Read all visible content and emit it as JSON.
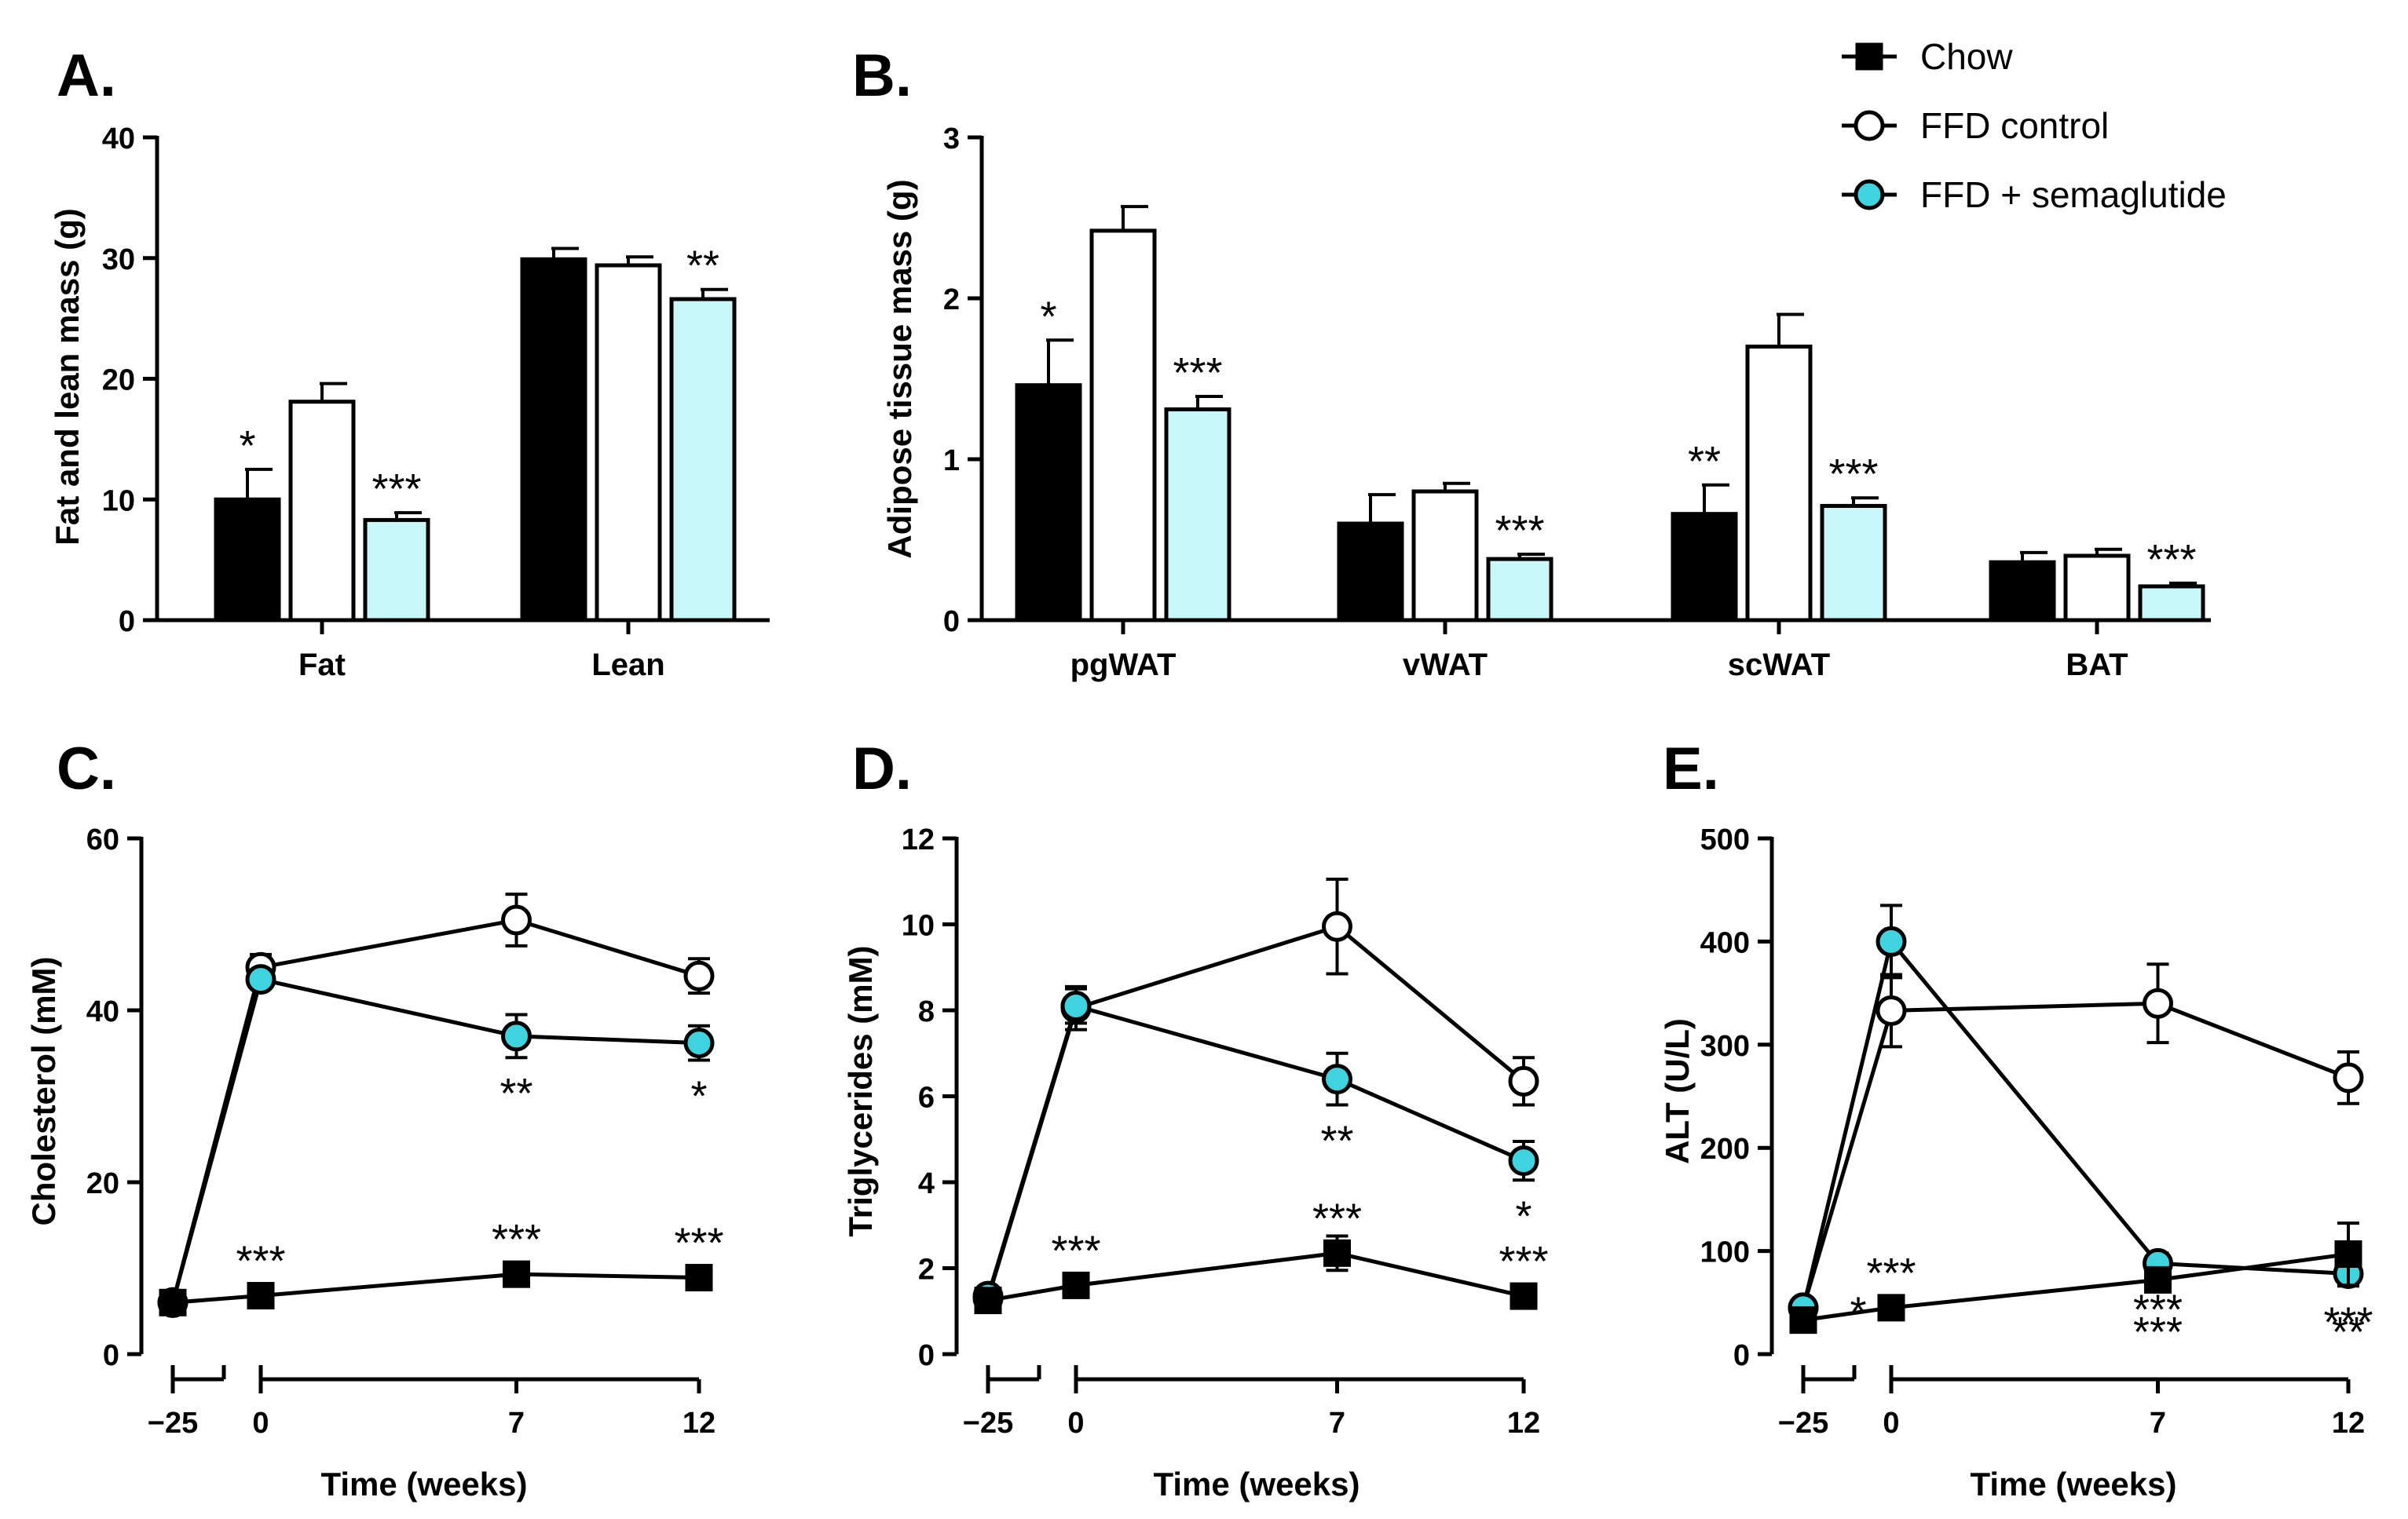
{
  "legend": [
    {
      "name": "Chow",
      "marker": "square",
      "fill": "#000000"
    },
    {
      "name": "FFD control",
      "marker": "circle",
      "fill": "#ffffff"
    },
    {
      "name": "FFD + semaglutide",
      "marker": "circle",
      "fill": "#3fd3df"
    }
  ],
  "colors": {
    "chow": "#000000",
    "control": "#ffffff",
    "sema_bar": "#c8f7f9",
    "sema_point": "#3fd3df"
  },
  "chart_data": [
    {
      "panel": "A.",
      "type": "bar",
      "ylabel": "Fat and lean mass (g)",
      "ylim": [
        0,
        40
      ],
      "yticks": [
        0,
        10,
        20,
        30,
        40
      ],
      "categories": [
        "Fat",
        "Lean"
      ],
      "series": [
        {
          "name": "Chow",
          "values": [
            10.0,
            29.9
          ],
          "errors": [
            2.5,
            0.9
          ],
          "sig": [
            "*",
            ""
          ]
        },
        {
          "name": "FFD control",
          "values": [
            18.1,
            29.4
          ],
          "errors": [
            1.5,
            0.7
          ],
          "sig": [
            "",
            ""
          ]
        },
        {
          "name": "FFD + semaglutide",
          "values": [
            8.3,
            26.6
          ],
          "errors": [
            0.6,
            0.8
          ],
          "sig": [
            "***",
            "**"
          ]
        }
      ]
    },
    {
      "panel": "B.",
      "type": "bar",
      "ylabel": "Adipose tissue mass (g)",
      "ylim": [
        0,
        3
      ],
      "yticks": [
        0,
        1,
        2,
        3
      ],
      "categories": [
        "pgWAT",
        "vWAT",
        "scWAT",
        "BAT"
      ],
      "series": [
        {
          "name": "Chow",
          "values": [
            1.46,
            0.6,
            0.66,
            0.36
          ],
          "errors": [
            0.28,
            0.18,
            0.18,
            0.06
          ],
          "sig": [
            "*",
            "",
            "**",
            ""
          ]
        },
        {
          "name": "FFD control",
          "values": [
            2.42,
            0.8,
            1.7,
            0.4
          ],
          "errors": [
            0.15,
            0.05,
            0.2,
            0.04
          ],
          "sig": [
            "",
            "",
            "",
            ""
          ]
        },
        {
          "name": "FFD + semaglutide",
          "values": [
            1.31,
            0.38,
            0.71,
            0.21
          ],
          "errors": [
            0.08,
            0.03,
            0.05,
            0.02
          ],
          "sig": [
            "***",
            "***",
            "***",
            "***"
          ]
        }
      ]
    },
    {
      "panel": "C.",
      "type": "line",
      "ylabel": "Cholesterol (mM)",
      "xlabel": "Time (weeks)",
      "ylim": [
        0,
        60
      ],
      "yticks": [
        0,
        20,
        40,
        60
      ],
      "xticks": [
        "-25",
        "0",
        "7",
        "12"
      ],
      "series": [
        {
          "name": "Chow",
          "points": [
            [
              -25,
              6.0,
              0
            ],
            [
              0,
              6.8,
              0
            ],
            [
              7,
              9.3,
              1.3
            ],
            [
              12,
              8.9,
              0.8
            ]
          ],
          "sig": [
            "",
            "***",
            "***",
            "***"
          ]
        },
        {
          "name": "FFD control",
          "points": [
            [
              -25,
              6.0,
              0
            ],
            [
              0,
              45.0,
              1.5
            ],
            [
              7,
              50.5,
              3.0
            ],
            [
              12,
              44.0,
              2.0
            ]
          ],
          "sig": [
            "",
            "",
            "",
            ""
          ]
        },
        {
          "name": "FFD + semaglutide",
          "points": [
            [
              -25,
              6.0,
              0
            ],
            [
              0,
              43.6,
              1.0
            ],
            [
              7,
              37.0,
              2.5
            ],
            [
              12,
              36.2,
              2.0
            ]
          ],
          "sig": [
            "",
            "",
            "**",
            "*"
          ]
        }
      ]
    },
    {
      "panel": "D.",
      "type": "line",
      "ylabel": "Triglycerides (mM)",
      "xlabel": "Time (weeks)",
      "ylim": [
        0,
        12
      ],
      "yticks": [
        0,
        2,
        4,
        6,
        8,
        10,
        12
      ],
      "xticks": [
        "-25",
        "0",
        "7",
        "12"
      ],
      "series": [
        {
          "name": "Chow",
          "points": [
            [
              -25,
              1.25,
              0.1
            ],
            [
              0,
              1.6,
              0.1
            ],
            [
              7,
              2.35,
              0.4
            ],
            [
              12,
              1.35,
              0.15
            ]
          ],
          "sig": [
            "",
            "***",
            "***",
            "***"
          ]
        },
        {
          "name": "FFD control",
          "points": [
            [
              -25,
              1.3,
              0
            ],
            [
              0,
              8.05,
              0.5
            ],
            [
              7,
              9.95,
              1.1
            ],
            [
              12,
              6.35,
              0.55
            ]
          ],
          "sig": [
            "",
            "",
            "",
            ""
          ]
        },
        {
          "name": "FFD + semaglutide",
          "points": [
            [
              -25,
              1.35,
              0
            ],
            [
              0,
              8.1,
              0.4
            ],
            [
              7,
              6.4,
              0.6
            ],
            [
              12,
              4.5,
              0.45
            ]
          ],
          "sig": [
            "",
            "",
            "**",
            "*"
          ]
        }
      ]
    },
    {
      "panel": "E.",
      "type": "line",
      "ylabel": "ALT (U/L)",
      "xlabel": "Time (weeks)",
      "ylim": [
        0,
        500
      ],
      "yticks": [
        0,
        100,
        200,
        300,
        400,
        500
      ],
      "xticks": [
        "-25",
        "0",
        "7",
        "12"
      ],
      "series": [
        {
          "name": "Chow",
          "points": [
            [
              -25,
              33,
              0
            ],
            [
              0,
              45,
              0
            ],
            [
              7,
              72,
              10
            ],
            [
              12,
              97,
              30
            ]
          ],
          "sig": [
            "*",
            "***",
            "",
            ""
          ]
        },
        {
          "name": "FFD control",
          "points": [
            [
              -25,
              45,
              0
            ],
            [
              0,
              333,
              35
            ],
            [
              7,
              340,
              38
            ],
            [
              12,
              268,
              25
            ]
          ],
          "sig": [
            "",
            "",
            "",
            ""
          ]
        },
        {
          "name": "FFD + semaglutide",
          "points": [
            [
              -25,
              45,
              0
            ],
            [
              0,
              400,
              35
            ],
            [
              7,
              88,
              10
            ],
            [
              12,
              78,
              12
            ]
          ],
          "sig": [
            "",
            "",
            "***",
            "***"
          ],
          "sig_below": [
            "",
            "",
            "***",
            "**"
          ]
        }
      ]
    }
  ]
}
